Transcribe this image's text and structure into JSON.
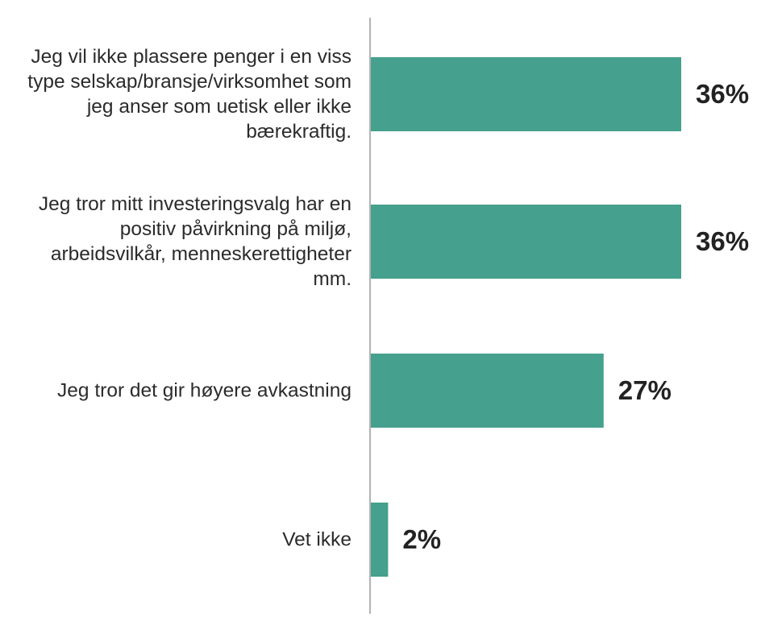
{
  "chart_data": {
    "type": "bar",
    "orientation": "horizontal",
    "title": "",
    "xlabel": "",
    "ylabel": "",
    "categories": [
      "Jeg vil ikke plassere penger i en viss type selskap/bransje/virksomhet som jeg anser som uetisk eller ikke bærekraftig.",
      "Jeg tror mitt investeringsvalg har en positiv påvirkning på miljø, arbeidsvilkår, menneskerettigheter mm.",
      "Jeg tror det gir høyere avkastning",
      "Vet ikke"
    ],
    "values": [
      36,
      36,
      27,
      2
    ],
    "value_labels": [
      "36%",
      "36%",
      "27%",
      "2%"
    ],
    "xlim": [
      0,
      36
    ],
    "grid": false,
    "legend": "none",
    "colors": {
      "bar": "#45a08d",
      "axis": "#9a9a9a",
      "category_text": "#2b2b2b",
      "value_text": "#222222"
    }
  }
}
